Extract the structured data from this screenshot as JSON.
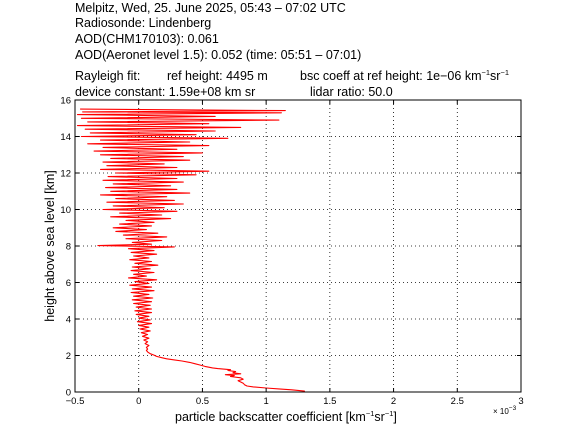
{
  "header": {
    "line1": "Melpitz, Wed, 25. June 2025, 05:43 – 07:02 UTC",
    "line2": "Radiosonde: Lindenberg",
    "line3": "AOD(CHM170103): 0.061",
    "line4": "AOD(Aeronet level 1.5): 0.052   (time: 05:51 – 07:01)",
    "rayleigh_label": "Rayleigh fit:",
    "ref_height": "ref height: 4495 m",
    "bsc_coeff_prefix": "bsc coeff at ref height: 1e−06 km",
    "device_constant": "device constant: 1.59e+08 km sr",
    "lidar_ratio": "lidar ratio: 50.0"
  },
  "units": {
    "km_exp": "−1",
    "sr": "sr",
    "sr_exp": "−1"
  },
  "chart_data": {
    "type": "line",
    "xlabel_prefix": "particle backscatter coefficient [km",
    "xlabel_exp1": "−1",
    "xlabel_mid": "sr",
    "xlabel_exp2": "−1",
    "xlabel_suffix": "]",
    "x_scale_label": "× 10",
    "x_scale_exp": "−3",
    "ylabel": "height above sea level [km]",
    "xlim": [
      -0.5,
      3
    ],
    "ylim": [
      0,
      16
    ],
    "xticks": [
      "−0.5",
      "0",
      "0.5",
      "1",
      "1.5",
      "2",
      "2.5",
      "3"
    ],
    "yticks": [
      "0",
      "2",
      "4",
      "6",
      "8",
      "10",
      "12",
      "14",
      "16"
    ],
    "grid": true,
    "series": [
      {
        "color": "#ff0000",
        "points": [
          [
            1.3,
            0.0
          ],
          [
            1.3,
            0.05
          ],
          [
            1.2,
            0.12
          ],
          [
            1.1,
            0.17
          ],
          [
            1.0,
            0.22
          ],
          [
            0.9,
            0.28
          ],
          [
            0.85,
            0.33
          ],
          [
            0.83,
            0.4
          ],
          [
            0.82,
            0.48
          ],
          [
            0.8,
            0.55
          ],
          [
            0.78,
            0.62
          ],
          [
            0.82,
            0.7
          ],
          [
            0.8,
            0.78
          ],
          [
            0.72,
            0.85
          ],
          [
            0.75,
            0.9
          ],
          [
            0.68,
            0.95
          ],
          [
            0.8,
            1.0
          ],
          [
            0.74,
            1.05
          ],
          [
            0.76,
            1.12
          ],
          [
            0.7,
            1.18
          ],
          [
            0.72,
            1.22
          ],
          [
            0.62,
            1.28
          ],
          [
            0.58,
            1.32
          ],
          [
            0.52,
            1.4
          ],
          [
            0.48,
            1.48
          ],
          [
            0.44,
            1.55
          ],
          [
            0.4,
            1.62
          ],
          [
            0.34,
            1.7
          ],
          [
            0.28,
            1.76
          ],
          [
            0.22,
            1.82
          ],
          [
            0.18,
            1.88
          ],
          [
            0.14,
            1.95
          ],
          [
            0.12,
            2.02
          ],
          [
            0.09,
            2.1
          ],
          [
            0.07,
            2.2
          ],
          [
            0.06,
            2.28
          ],
          [
            0.07,
            2.35
          ],
          [
            0.06,
            2.45
          ],
          [
            0.08,
            2.55
          ],
          [
            0.05,
            2.65
          ],
          [
            0.07,
            2.75
          ],
          [
            0.04,
            2.85
          ],
          [
            0.08,
            2.95
          ],
          [
            0.03,
            3.05
          ],
          [
            0.07,
            3.15
          ],
          [
            0.02,
            3.25
          ],
          [
            0.09,
            3.35
          ],
          [
            0.01,
            3.45
          ],
          [
            0.08,
            3.55
          ],
          [
            0.0,
            3.65
          ],
          [
            0.1,
            3.75
          ],
          [
            -0.01,
            3.85
          ],
          [
            0.09,
            3.95
          ],
          [
            0.0,
            4.05
          ],
          [
            0.08,
            4.15
          ],
          [
            -0.02,
            4.25
          ],
          [
            0.1,
            4.35
          ],
          [
            -0.03,
            4.45
          ],
          [
            0.1,
            4.55
          ],
          [
            -0.02,
            4.65
          ],
          [
            0.09,
            4.75
          ],
          [
            -0.04,
            4.85
          ],
          [
            0.1,
            4.95
          ],
          [
            -0.05,
            5.05
          ],
          [
            0.11,
            5.15
          ],
          [
            -0.04,
            5.25
          ],
          [
            0.08,
            5.35
          ],
          [
            -0.06,
            5.45
          ],
          [
            0.12,
            5.55
          ],
          [
            -0.05,
            5.65
          ],
          [
            0.1,
            5.75
          ],
          [
            -0.07,
            5.85
          ],
          [
            0.08,
            5.95
          ],
          [
            -0.03,
            6.05
          ],
          [
            0.14,
            6.15
          ],
          [
            -0.08,
            6.25
          ],
          [
            0.06,
            6.35
          ],
          [
            -0.04,
            6.45
          ],
          [
            0.12,
            6.55
          ],
          [
            -0.06,
            6.65
          ],
          [
            0.09,
            6.75
          ],
          [
            -0.05,
            6.85
          ],
          [
            0.15,
            6.95
          ],
          [
            -0.03,
            7.05
          ],
          [
            0.1,
            7.15
          ],
          [
            -0.07,
            7.25
          ],
          [
            0.08,
            7.35
          ],
          [
            -0.04,
            7.45
          ],
          [
            0.14,
            7.55
          ],
          [
            -0.06,
            7.65
          ],
          [
            0.12,
            7.75
          ],
          [
            -0.08,
            7.85
          ],
          [
            0.28,
            7.95
          ],
          [
            -0.32,
            8.02
          ],
          [
            0.1,
            8.1
          ],
          [
            -0.05,
            8.2
          ],
          [
            0.18,
            8.3
          ],
          [
            -0.1,
            8.4
          ],
          [
            0.22,
            8.5
          ],
          [
            -0.12,
            8.6
          ],
          [
            0.15,
            8.7
          ],
          [
            -0.18,
            8.8
          ],
          [
            0.06,
            8.9
          ],
          [
            -0.2,
            9.0
          ],
          [
            0.1,
            9.1
          ],
          [
            -0.15,
            9.2
          ],
          [
            0.12,
            9.3
          ],
          [
            -0.1,
            9.4
          ],
          [
            0.25,
            9.5
          ],
          [
            -0.22,
            9.6
          ],
          [
            0.18,
            9.7
          ],
          [
            -0.15,
            9.8
          ],
          [
            0.3,
            9.9
          ],
          [
            -0.28,
            10.0
          ],
          [
            0.2,
            10.1
          ],
          [
            -0.2,
            10.2
          ],
          [
            0.35,
            10.3
          ],
          [
            -0.25,
            10.4
          ],
          [
            0.28,
            10.5
          ],
          [
            -0.18,
            10.6
          ],
          [
            0.22,
            10.7
          ],
          [
            -0.3,
            10.8
          ],
          [
            0.4,
            10.9
          ],
          [
            -0.22,
            11.0
          ],
          [
            0.3,
            11.1
          ],
          [
            -0.26,
            11.2
          ],
          [
            0.25,
            11.3
          ],
          [
            -0.2,
            11.4
          ],
          [
            0.35,
            11.5
          ],
          [
            -0.28,
            11.6
          ],
          [
            0.3,
            11.7
          ],
          [
            -0.24,
            11.8
          ],
          [
            0.45,
            11.9
          ],
          [
            -0.18,
            12.0
          ],
          [
            0.55,
            12.1
          ],
          [
            -0.3,
            12.2
          ],
          [
            0.3,
            12.3
          ],
          [
            -0.25,
            12.4
          ],
          [
            0.2,
            12.5
          ],
          [
            -0.28,
            12.6
          ],
          [
            0.4,
            12.7
          ],
          [
            -0.22,
            12.8
          ],
          [
            0.35,
            12.9
          ],
          [
            -0.3,
            13.0
          ],
          [
            0.5,
            13.1
          ],
          [
            -0.35,
            13.2
          ],
          [
            0.3,
            13.3
          ],
          [
            -0.28,
            13.4
          ],
          [
            0.55,
            13.5
          ],
          [
            -0.4,
            13.6
          ],
          [
            0.4,
            13.7
          ],
          [
            -0.3,
            13.8
          ],
          [
            0.7,
            13.9
          ],
          [
            -0.45,
            14.0
          ],
          [
            0.45,
            14.1
          ],
          [
            -0.38,
            14.2
          ],
          [
            0.6,
            14.3
          ],
          [
            -0.42,
            14.4
          ],
          [
            0.8,
            14.5
          ],
          [
            -0.48,
            14.6
          ],
          [
            0.55,
            14.7
          ],
          [
            -0.4,
            14.8
          ],
          [
            1.1,
            14.9
          ],
          [
            -0.45,
            15.0
          ],
          [
            0.6,
            15.1
          ],
          [
            -0.48,
            15.2
          ],
          [
            1.12,
            15.3
          ],
          [
            -0.44,
            15.35
          ],
          [
            1.15,
            15.42
          ],
          [
            -0.46,
            15.5
          ]
        ]
      }
    ]
  }
}
